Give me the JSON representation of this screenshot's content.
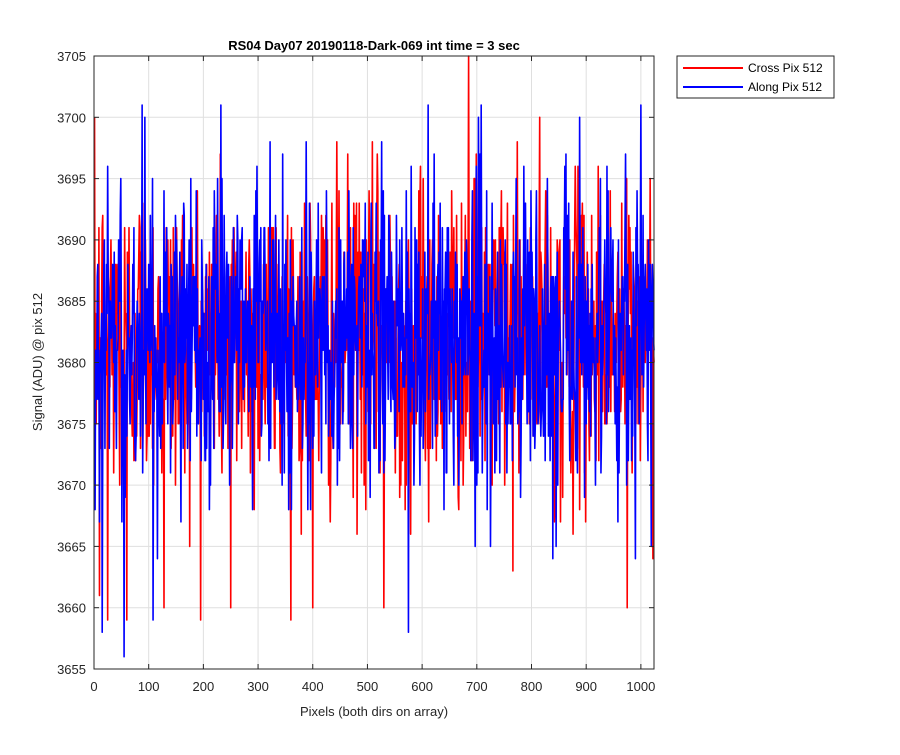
{
  "chart_data": {
    "type": "line",
    "title": "RS04 Day07 20190118-Dark-069 int time = 3 sec",
    "xlabel": "Pixels (both dirs on array)",
    "ylabel": "Signal (ADU) @ pix 512",
    "xlim": [
      0,
      1024
    ],
    "ylim": [
      3655,
      3705
    ],
    "xticks": [
      0,
      100,
      200,
      300,
      400,
      500,
      600,
      700,
      800,
      900,
      1000
    ],
    "yticks": [
      3655,
      3660,
      3665,
      3670,
      3675,
      3680,
      3685,
      3690,
      3695,
      3700,
      3705
    ],
    "grid": true,
    "legend_position": "top-right outside",
    "series": [
      {
        "name": "Cross Pix 512",
        "color": "#ff0000",
        "x_start": 1,
        "x_step": 1,
        "n_points": 1024,
        "mean": 3682,
        "std": 6.5,
        "min": 3659,
        "max": 3705,
        "notable_points": [
          [
            10,
            3661
          ],
          [
            25,
            3659
          ],
          [
            60,
            3659
          ],
          [
            128,
            3660
          ],
          [
            250,
            3660
          ],
          [
            400,
            3660
          ],
          [
            530,
            3660
          ],
          [
            685,
            3705
          ],
          [
            975,
            3660
          ]
        ]
      },
      {
        "name": "Along Pix 512",
        "color": "#0000ff",
        "x_start": 1,
        "x_step": 1,
        "n_points": 1024,
        "mean": 3682,
        "std": 6.5,
        "min": 3656,
        "max": 3701,
        "notable_points": [
          [
            15,
            3658
          ],
          [
            55,
            3656
          ],
          [
            88,
            3701
          ],
          [
            108,
            3659
          ],
          [
            575,
            3658
          ],
          [
            703,
            3700
          ],
          [
            888,
            3700
          ],
          [
            1000,
            3701
          ]
        ]
      }
    ]
  }
}
